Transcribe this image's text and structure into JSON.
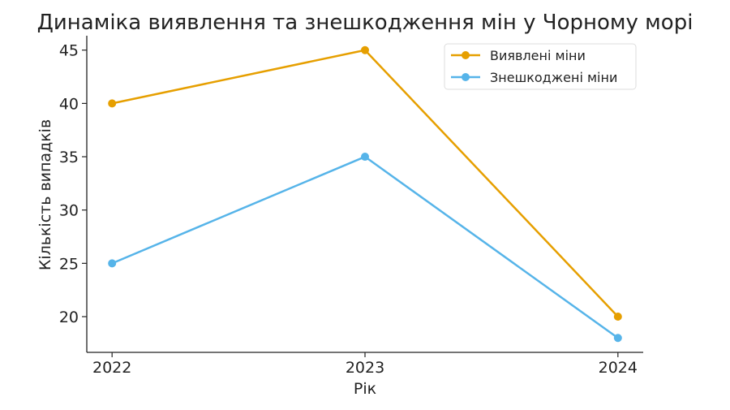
{
  "chart_data": {
    "type": "line",
    "title": "Динаміка виявлення та знешкодження мін у Чорному морі",
    "xlabel": "Рік",
    "ylabel": "Кількість випадків",
    "x": [
      2022,
      2023,
      2024
    ],
    "xticks": [
      "2022",
      "2023",
      "2024"
    ],
    "yticks": [
      20,
      25,
      30,
      35,
      40,
      45
    ],
    "xlim": [
      2021.9,
      2024.1
    ],
    "ylim": [
      16.65,
      46.35
    ],
    "grid": false,
    "legend_position": "top-right",
    "series": [
      {
        "name": "Виявлені міни",
        "values": [
          40,
          45,
          20
        ],
        "color": "#E69F00",
        "marker": "circle"
      },
      {
        "name": "Знешкоджені міни",
        "values": [
          25,
          35,
          18
        ],
        "color": "#56B4E9",
        "marker": "circle"
      }
    ]
  }
}
